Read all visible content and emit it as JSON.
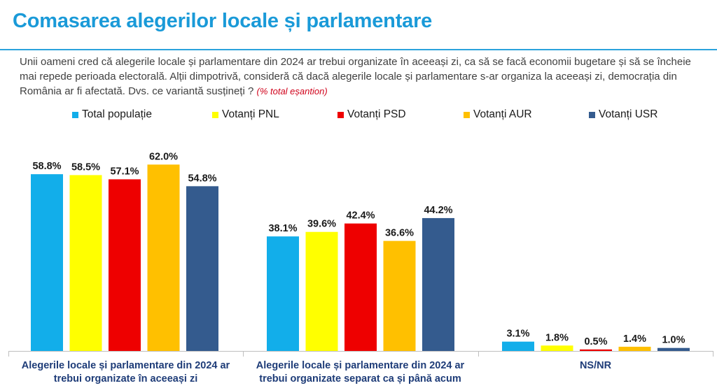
{
  "header": {
    "title": "Comasarea alegerilor locale și parlamentare"
  },
  "question": {
    "text": "Unii oameni cred că alegerile locale și parlamentare din 2024 ar trebui organizate în aceeași zi, ca să se facă economii bugetare și să se încheie mai repede perioada electorală. Alții dimpotrivă, consideră că dacă alegerile locale și parlamentare s-ar organiza la aceeași zi, democrația din România ar fi afectată. Dvs. ce variantă susțineți ?",
    "note": "(% total eșantion)"
  },
  "colors": {
    "title": "#1a9ad8",
    "category_label": "#1e3c78",
    "series": [
      "#12aeea",
      "#ffff00",
      "#ee0000",
      "#ffc000",
      "#345b8e"
    ]
  },
  "chart_data": {
    "type": "bar",
    "categories": [
      "Alegerile locale și parlamentare din 2024 ar trebui organizate în aceeași zi",
      "Alegerile locale și parlamentare din 2024 ar trebui organizate separat ca și până acum",
      "NS/NR"
    ],
    "category_lines": [
      [
        "Alegerile locale și parlamentare din 2024 ar",
        "trebui organizate în aceeași zi"
      ],
      [
        "Alegerile locale și parlamentare din 2024 ar",
        "trebui organizate separat ca și până acum"
      ],
      [
        "NS/NR"
      ]
    ],
    "series": [
      {
        "name": "Total populație",
        "values": [
          58.8,
          38.1,
          3.1
        ],
        "labels": [
          "58.8%",
          "38.1%",
          "3.1%"
        ]
      },
      {
        "name": "Votanți PNL",
        "values": [
          58.5,
          39.6,
          1.8
        ],
        "labels": [
          "58.5%",
          "39.6%",
          "1.8%"
        ]
      },
      {
        "name": "Votanți PSD",
        "values": [
          57.1,
          42.4,
          0.5
        ],
        "labels": [
          "57.1%",
          "42.4%",
          "0.5%"
        ]
      },
      {
        "name": "Votanți AUR",
        "values": [
          62.0,
          36.6,
          1.4
        ],
        "labels": [
          "62.0%",
          "36.6%",
          "1.4%"
        ]
      },
      {
        "name": "Votanți USR",
        "values": [
          54.8,
          44.2,
          1.0
        ],
        "labels": [
          "54.8%",
          "44.2%",
          "1.0%"
        ]
      }
    ],
    "ylim": [
      0,
      70
    ],
    "legend_position": "top",
    "grid": false,
    "y_axis_visible": false
  }
}
